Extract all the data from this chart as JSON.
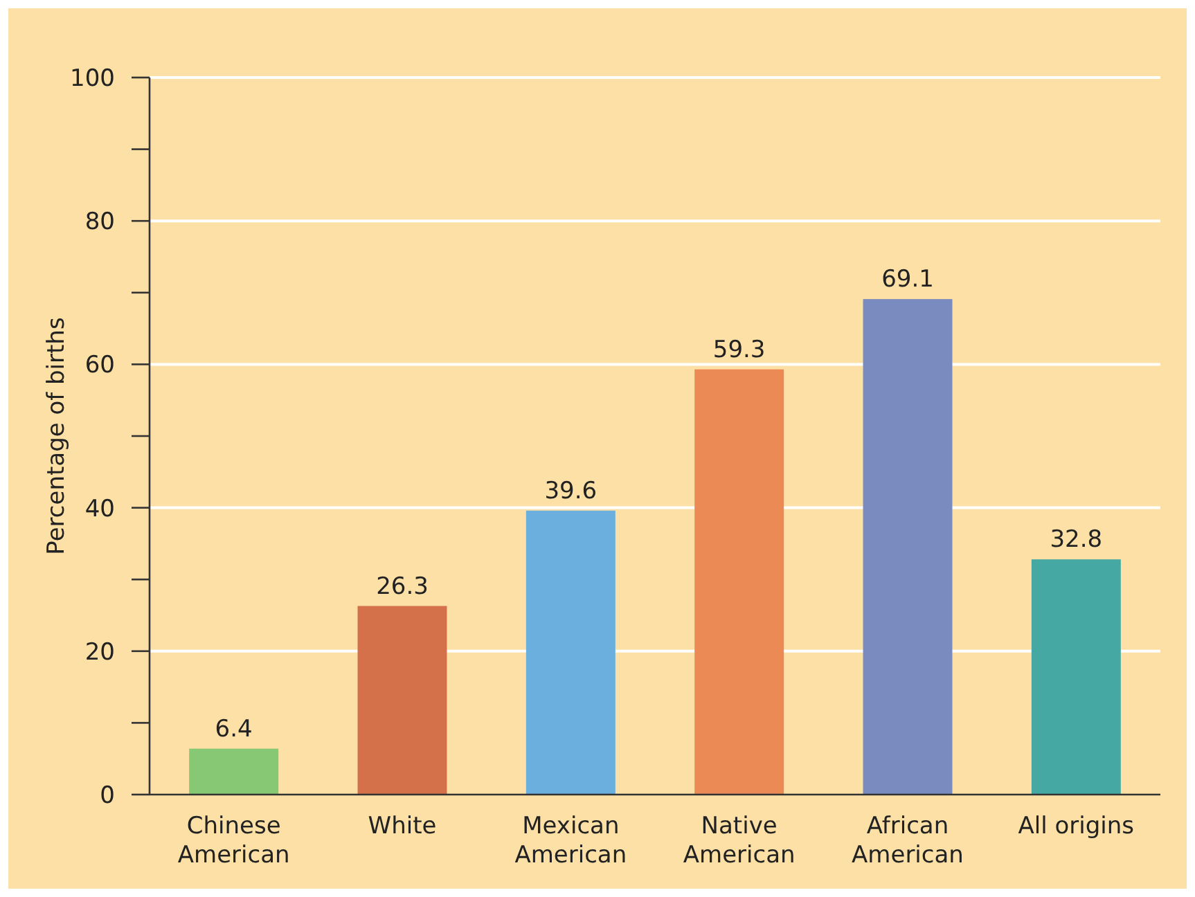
{
  "chart_data": {
    "type": "bar",
    "ylabel": "Percentage of births",
    "categories": [
      "Chinese American",
      "White",
      "Mexican American",
      "Native American",
      "African American",
      "All origins"
    ],
    "values": [
      6.4,
      26.3,
      39.6,
      59.3,
      69.1,
      32.8
    ],
    "colors": [
      "#86c874",
      "#d4704a",
      "#6aafde",
      "#ec8a55",
      "#7a8cbf",
      "#45a8a3"
    ],
    "ylim": [
      0,
      100
    ],
    "yticks": [
      0,
      {
        "value": 10,
        "label": null
      },
      20,
      {
        "value": 30,
        "label": null
      },
      40,
      {
        "value": 50,
        "label": null
      },
      60,
      {
        "value": 70,
        "label": null
      },
      80,
      {
        "value": 90,
        "label": null
      },
      100
    ],
    "grid": "y",
    "data_labels": true
  }
}
